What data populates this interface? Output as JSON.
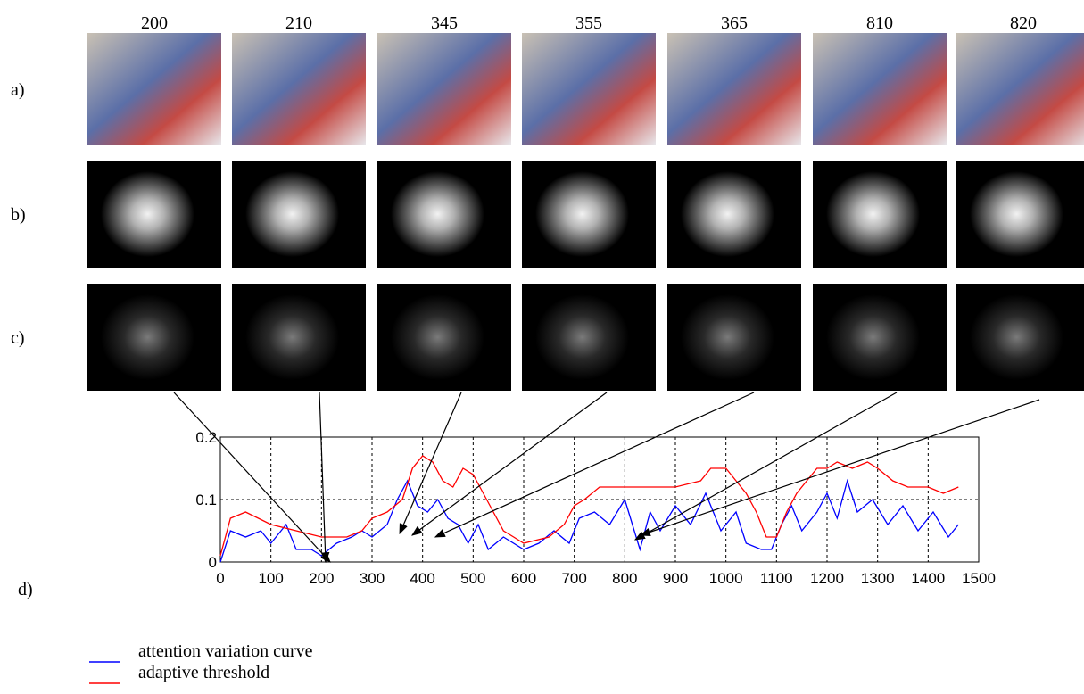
{
  "frames": [
    "200",
    "210",
    "345",
    "355",
    "365",
    "810",
    "820"
  ],
  "rows": [
    "a)",
    "b)",
    "c)"
  ],
  "chart_data": {
    "type": "line",
    "panel_label": "d)",
    "xlim": [
      0,
      1500
    ],
    "xticks": [
      0,
      100,
      200,
      300,
      400,
      500,
      600,
      700,
      800,
      900,
      1000,
      1100,
      1200,
      1300,
      1400,
      1500
    ],
    "ylim": [
      0,
      0.2
    ],
    "yticks": [
      0,
      0.1,
      0.2
    ],
    "grid": true,
    "series": [
      {
        "name": "attention variation curve",
        "color": "#0000ff",
        "x": [
          0,
          20,
          50,
          80,
          100,
          130,
          150,
          180,
          200,
          230,
          260,
          280,
          300,
          330,
          350,
          370,
          390,
          410,
          430,
          450,
          470,
          490,
          510,
          530,
          560,
          600,
          630,
          660,
          690,
          710,
          740,
          770,
          800,
          830,
          850,
          870,
          900,
          930,
          960,
          990,
          1020,
          1040,
          1070,
          1090,
          1110,
          1130,
          1150,
          1180,
          1200,
          1220,
          1240,
          1260,
          1290,
          1320,
          1350,
          1380,
          1410,
          1440,
          1460
        ],
        "values": [
          0,
          0.05,
          0.04,
          0.05,
          0.03,
          0.06,
          0.02,
          0.02,
          0.01,
          0.03,
          0.04,
          0.05,
          0.04,
          0.06,
          0.1,
          0.13,
          0.09,
          0.08,
          0.1,
          0.07,
          0.06,
          0.03,
          0.06,
          0.02,
          0.04,
          0.02,
          0.03,
          0.05,
          0.03,
          0.07,
          0.08,
          0.06,
          0.1,
          0.02,
          0.08,
          0.05,
          0.09,
          0.06,
          0.11,
          0.05,
          0.08,
          0.03,
          0.02,
          0.02,
          0.06,
          0.09,
          0.05,
          0.08,
          0.11,
          0.07,
          0.13,
          0.08,
          0.1,
          0.06,
          0.09,
          0.05,
          0.08,
          0.04,
          0.06
        ]
      },
      {
        "name": "adaptive threshold",
        "color": "#ff0000",
        "x": [
          0,
          20,
          50,
          100,
          150,
          200,
          250,
          280,
          300,
          330,
          360,
          380,
          400,
          420,
          440,
          460,
          480,
          500,
          520,
          540,
          560,
          580,
          600,
          650,
          680,
          700,
          720,
          750,
          800,
          850,
          900,
          950,
          970,
          1000,
          1020,
          1040,
          1060,
          1080,
          1100,
          1120,
          1140,
          1160,
          1180,
          1200,
          1220,
          1250,
          1280,
          1300,
          1330,
          1360,
          1400,
          1430,
          1460
        ],
        "values": [
          0.01,
          0.07,
          0.08,
          0.06,
          0.05,
          0.04,
          0.04,
          0.05,
          0.07,
          0.08,
          0.1,
          0.15,
          0.17,
          0.16,
          0.13,
          0.12,
          0.15,
          0.14,
          0.11,
          0.08,
          0.05,
          0.04,
          0.03,
          0.04,
          0.06,
          0.09,
          0.1,
          0.12,
          0.12,
          0.12,
          0.12,
          0.13,
          0.15,
          0.15,
          0.13,
          0.11,
          0.08,
          0.04,
          0.04,
          0.08,
          0.11,
          0.13,
          0.15,
          0.15,
          0.16,
          0.15,
          0.16,
          0.15,
          0.13,
          0.12,
          0.12,
          0.11,
          0.12
        ]
      }
    ]
  }
}
